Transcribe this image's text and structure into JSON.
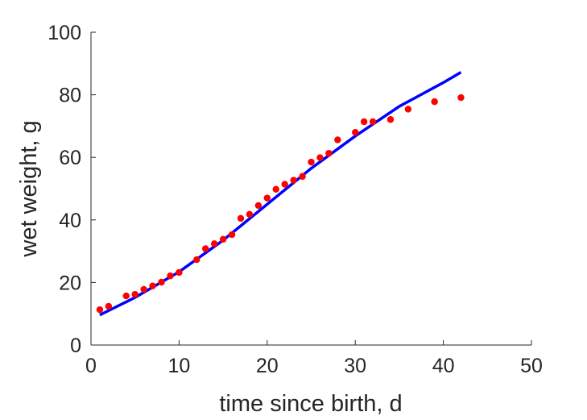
{
  "chart_data": {
    "type": "scatter",
    "title": "",
    "xlabel": "time since birth, d",
    "ylabel": "wet weight, g",
    "xlim": [
      0,
      50
    ],
    "ylim": [
      0,
      100
    ],
    "xticks": [
      0,
      10,
      20,
      30,
      40,
      50
    ],
    "yticks": [
      0,
      20,
      40,
      60,
      80,
      100
    ],
    "grid": false,
    "series": [
      {
        "type": "scatter",
        "color": "#ff0000",
        "x": [
          1,
          2,
          4,
          5,
          6,
          7,
          8,
          9,
          10,
          12,
          13,
          14,
          15,
          16,
          17,
          18,
          19,
          20,
          21,
          22,
          23,
          24,
          25,
          26,
          27,
          28,
          30,
          31,
          32,
          34,
          36,
          39,
          42
        ],
        "y": [
          11.3,
          12.4,
          15.7,
          16.2,
          17.8,
          18.9,
          20.1,
          22.1,
          23.2,
          27.3,
          30.8,
          32.4,
          33.8,
          35.3,
          40.5,
          41.8,
          44.6,
          47.0,
          49.8,
          51.4,
          52.7,
          53.9,
          58.5,
          59.9,
          61.3,
          65.6,
          68.0,
          71.4,
          71.4,
          72.1,
          75.4,
          77.8,
          79.1
        ]
      },
      {
        "type": "line",
        "color": "#0000ff",
        "x": [
          1,
          5,
          10,
          15,
          20,
          25,
          30,
          35,
          40,
          42
        ],
        "y": [
          9.6,
          15.2,
          23.4,
          33.5,
          45.0,
          56.5,
          66.8,
          76.3,
          83.9,
          87.2
        ]
      }
    ]
  }
}
